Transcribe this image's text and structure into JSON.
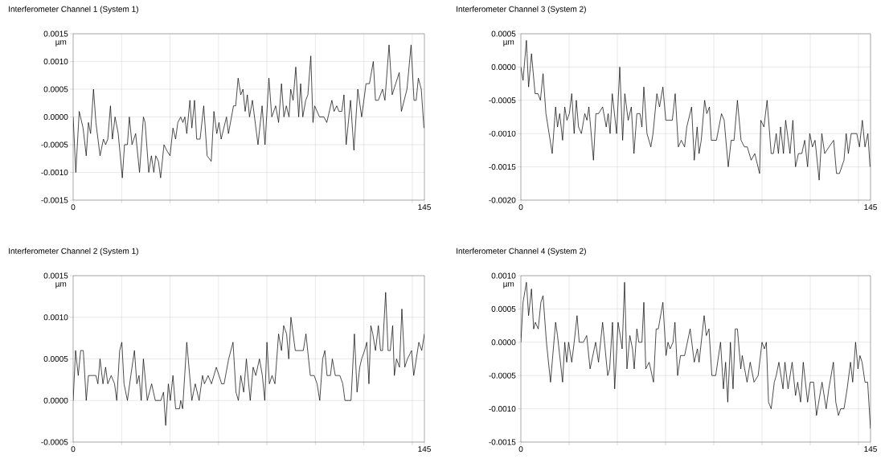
{
  "chart_data": [
    {
      "type": "line",
      "title": "Interferometer Channel 1 (System 1)",
      "ylabel": "µm",
      "color": "#000000",
      "grid": true,
      "xlim": [
        0,
        145
      ],
      "xticks": [
        0,
        {
          "value": 20,
          "label": null
        },
        {
          "value": 40,
          "label": null
        },
        {
          "value": 60,
          "label": null
        },
        {
          "value": 80,
          "label": null
        },
        {
          "value": 100,
          "label": null
        },
        {
          "value": 120,
          "label": null
        },
        {
          "value": 140,
          "label": null
        },
        145
      ],
      "ylim": [
        -0.0015,
        0.0015
      ],
      "yticks": [
        {
          "value": -0.0015,
          "label": "-0.0015"
        },
        {
          "value": -0.001,
          "label": "-0.0010"
        },
        {
          "value": -0.0005,
          "label": "-0.0005"
        },
        {
          "value": 0,
          "label": "0.0000"
        },
        {
          "value": 0.0005,
          "label": "0.0005"
        },
        {
          "value": 0.001,
          "label": "0.0010"
        },
        {
          "value": 0.0015,
          "label": "0.0015"
        }
      ],
      "x": [
        0,
        1.1,
        2.5,
        4.1,
        5.4,
        6.3,
        7.2,
        8.4,
        9.4,
        11.1,
        12.5,
        13.4,
        14.3,
        15.4,
        16.2,
        17.3,
        18.6,
        20.3,
        21.2,
        22.4,
        23.2,
        24.3,
        25.8,
        27.4,
        29,
        29.7,
        31.2,
        32.3,
        33.3,
        34.1,
        35.2,
        36.1,
        37.5,
        38.6,
        40,
        41.2,
        42.3,
        43.2,
        44.4,
        45.3,
        46.1,
        46.9,
        48.2,
        49,
        50.1,
        51,
        52.4,
        53.9,
        55.3,
        57,
        58.1,
        59.3,
        60.2,
        61.1,
        63.3,
        64.1,
        66.2,
        67.1,
        68.1,
        69.2,
        70.1,
        71,
        71.9,
        72.8,
        74,
        76.3,
        78,
        79.2,
        80.8,
        82,
        83.6,
        84.8,
        86,
        87,
        88,
        89.1,
        89.8,
        90.8,
        91.9,
        93.1,
        93.9,
        94.8,
        96,
        96.9,
        98.1,
        99,
        99.7,
        101.7,
        103.5,
        104.7,
        106.8,
        107.7,
        108.8,
        109.7,
        110.9,
        111.8,
        112.7,
        114.5,
        115.9,
        117.5,
        119.1,
        120.9,
        122.3,
        123.9,
        124.8,
        126,
        127.7,
        128.7,
        130.4,
        131.7,
        134.6,
        135.5,
        137.8,
        139.5,
        140.7,
        141.6,
        142.5,
        143.7,
        144.8
      ],
      "values": [
        0,
        -0.001,
        0.0001,
        -0.0002,
        -0.0007,
        -0.0001,
        -0.0003,
        0.0005,
        -0.0001,
        -0.0007,
        -0.0004,
        -0.0005,
        -0.0004,
        0.0002,
        -0.0004,
        0,
        -0.0003,
        -0.0011,
        -0.0005,
        -0.0005,
        0,
        -0.0005,
        -0.0003,
        -0.001,
        0,
        -0.0001,
        -0.001,
        -0.0007,
        -0.001,
        -0.0007,
        -0.0008,
        -0.0011,
        -0.0005,
        -0.0006,
        -0.0007,
        -0.0002,
        -0.0004,
        -0.0001,
        0,
        -0.0001,
        0,
        -0.0003,
        0.0003,
        -0.0002,
        0.0003,
        -0.0004,
        -0.0004,
        0.0002,
        -0.0007,
        -0.0008,
        0.0001,
        -0.0003,
        -0.0001,
        -0.0004,
        0,
        -0.0003,
        0.0002,
        0.0002,
        0.0007,
        0.0004,
        0.0005,
        0.0001,
        0.0004,
        0,
        0.0003,
        -0.0005,
        0.0002,
        -0.0005,
        0.0007,
        0,
        0.0002,
        -0.0001,
        0.0006,
        0,
        0.0002,
        0,
        0.0005,
        0.0003,
        0.0009,
        0,
        0.0006,
        0,
        0.0003,
        0.0004,
        0.0011,
        -0.0001,
        0.0002,
        0,
        0,
        -0.0001,
        0.0003,
        0.0001,
        0.0002,
        0.0001,
        0.0001,
        0.0004,
        -0.0005,
        0.0003,
        -0.0006,
        0.0005,
        0,
        0.0006,
        0.0006,
        0.001,
        0.0003,
        0.0003,
        0.0005,
        0.0003,
        0.0013,
        0.0004,
        0.0008,
        0.0001,
        0.0005,
        0.0013,
        0.0003,
        0.0003,
        0.0007,
        0.0005,
        -0.0002
      ]
    },
    {
      "type": "line",
      "title": "Interferometer Channel 3 (System 2)",
      "ylabel": "µm",
      "color": "#000000",
      "grid": true,
      "xlim": [
        0,
        145
      ],
      "xticks": [
        0,
        {
          "value": 20,
          "label": null
        },
        {
          "value": 40,
          "label": null
        },
        {
          "value": 60,
          "label": null
        },
        {
          "value": 80,
          "label": null
        },
        {
          "value": 100,
          "label": null
        },
        {
          "value": 120,
          "label": null
        },
        {
          "value": 140,
          "label": null
        },
        145
      ],
      "ylim": [
        -0.002,
        0.0005
      ],
      "yticks": [
        {
          "value": -0.002,
          "label": "-0.0020"
        },
        {
          "value": -0.0015,
          "label": "-0.0015"
        },
        {
          "value": -0.001,
          "label": "-0.0010"
        },
        {
          "value": -0.0005,
          "label": "-0.0005"
        },
        {
          "value": 0,
          "label": "0.0000"
        },
        {
          "value": 0.0005,
          "label": "0.0005"
        }
      ],
      "x": [
        0,
        0.9,
        2.3,
        3.2,
        4.4,
        5.9,
        7.1,
        8.1,
        9.2,
        10.4,
        13,
        14.4,
        15.2,
        16.1,
        17.3,
        18.2,
        19.1,
        20.1,
        21.1,
        22.1,
        23,
        23.9,
        25.1,
        26.5,
        27.4,
        28.2,
        30.1,
        31.1,
        32.2,
        33.9,
        35.4,
        36.2,
        37,
        37.9,
        39.7,
        41,
        42.2,
        43.1,
        44.5,
        45.8,
        46.9,
        48.1,
        49.4,
        50.2,
        51,
        52.3,
        53.9,
        54.8,
        56.4,
        57.5,
        58.9,
        60.1,
        61.3,
        62.8,
        64,
        65.3,
        66.5,
        67.9,
        68.8,
        70.8,
        71.9,
        73.1,
        73.9,
        74.8,
        76.2,
        77.1,
        78.2,
        79,
        81.1,
        83.2,
        84.3,
        86,
        87.2,
        88.4,
        89.8,
        91.3,
        92.7,
        93.9,
        95.5,
        97,
        99,
        99.5,
        100.8,
        102.1,
        103.8,
        104.7,
        105.9,
        106.8,
        107.7,
        108.9,
        109.8,
        111.6,
        112.8,
        113.9,
        115.1,
        116.5,
        117.7,
        118.9,
        119.8,
        120.9,
        122,
        123.7,
        124.8,
        126,
        127.8,
        129.7,
        130.9,
        132.1,
        134,
        134.9,
        135.8,
        137,
        139.3,
        140.4,
        141.6,
        142.7,
        143.9,
        144.8
      ],
      "values": [
        0,
        -0.0002,
        0.0004,
        -0.0003,
        0.0002,
        -0.0004,
        -0.0004,
        -0.0005,
        -0.0001,
        -0.0007,
        -0.0013,
        -0.0006,
        -0.0009,
        -0.0007,
        -0.0011,
        -0.0006,
        -0.0008,
        -0.0007,
        -0.0004,
        -0.001,
        -0.0005,
        -0.0009,
        -0.001,
        -0.0007,
        -0.0008,
        -0.0006,
        -0.0014,
        -0.0007,
        -0.0007,
        -0.0006,
        -0.0009,
        -0.0007,
        -0.001,
        -0.0004,
        -0.001,
        0,
        -0.0011,
        -0.0004,
        -0.0008,
        -0.0006,
        -0.0013,
        -0.0007,
        -0.0007,
        -0.0009,
        -0.0003,
        -0.001,
        -0.0012,
        -0.001,
        -0.0004,
        -0.0006,
        -0.0003,
        -0.0008,
        -0.0008,
        -0.0008,
        -0.0004,
        -0.0012,
        -0.0011,
        -0.0012,
        -0.0009,
        -0.0006,
        -0.0014,
        -0.0009,
        -0.0013,
        -0.0011,
        -0.0005,
        -0.0007,
        -0.0006,
        -0.0011,
        -0.0011,
        -0.0007,
        -0.0008,
        -0.0015,
        -0.0011,
        -0.0011,
        -0.0005,
        -0.0011,
        -0.0012,
        -0.0012,
        -0.0014,
        -0.0013,
        -0.0016,
        -0.0008,
        -0.0009,
        -0.0005,
        -0.0013,
        -0.0013,
        -0.001,
        -0.0013,
        -0.0009,
        -0.0013,
        -0.0008,
        -0.0013,
        -0.0008,
        -0.0015,
        -0.0013,
        -0.0013,
        -0.0011,
        -0.0015,
        -0.001,
        -0.0012,
        -0.0011,
        -0.0017,
        -0.001,
        -0.0013,
        -0.0012,
        -0.0011,
        -0.0016,
        -0.0016,
        -0.0014,
        -0.001,
        -0.0013,
        -0.001,
        -0.001,
        -0.0012,
        -0.0008,
        -0.0012,
        -0.001,
        -0.0015
      ]
    },
    {
      "type": "line",
      "title": "Interferometer Channel 2 (System 1)",
      "ylabel": "µm",
      "color": "#000000",
      "grid": true,
      "xlim": [
        0,
        145
      ],
      "xticks": [
        0,
        {
          "value": 20,
          "label": null
        },
        {
          "value": 40,
          "label": null
        },
        {
          "value": 60,
          "label": null
        },
        {
          "value": 80,
          "label": null
        },
        {
          "value": 100,
          "label": null
        },
        {
          "value": 120,
          "label": null
        },
        {
          "value": 140,
          "label": null
        },
        145
      ],
      "ylim": [
        -0.0005,
        0.0015
      ],
      "yticks": [
        {
          "value": -0.0005,
          "label": "-0.0005"
        },
        {
          "value": 0,
          "label": "0.0000"
        },
        {
          "value": 0.0005,
          "label": "0.0005"
        },
        {
          "value": 0.001,
          "label": "0.0010"
        },
        {
          "value": 0.0015,
          "label": "0.0015"
        }
      ],
      "x": [
        0,
        1,
        2.1,
        3.1,
        4.2,
        5.4,
        6.3,
        9.4,
        10.2,
        11.1,
        12.3,
        13.4,
        14.3,
        15.7,
        17.1,
        18,
        19.2,
        20.1,
        21,
        22.4,
        23.8,
        25.3,
        26.3,
        27.2,
        28.1,
        29,
        30.6,
        32.4,
        33.9,
        36.2,
        37.3,
        38.2,
        39.3,
        40.1,
        41.2,
        42.3,
        43.9,
        44.4,
        45.2,
        46.9,
        49,
        50.4,
        52,
        53.4,
        54.2,
        55.7,
        57.1,
        59.1,
        61.3,
        62.3,
        64.2,
        66,
        67.2,
        68.2,
        69.2,
        70.4,
        71.5,
        73.1,
        74.3,
        75.4,
        76.9,
        78.1,
        79.1,
        80,
        81,
        82.1,
        83.3,
        84.8,
        86,
        86.9,
        88.1,
        89,
        89.9,
        91.7,
        95,
        96.1,
        97.9,
        99.5,
        100.7,
        101.8,
        103,
        103.9,
        104.8,
        106.2,
        107,
        108.2,
        110.1,
        111.3,
        112.2,
        114.7,
        116.1,
        117.2,
        118.3,
        119.1,
        120.3,
        121.2,
        122.1,
        122.9,
        123.7,
        124.8,
        126,
        126.9,
        127.7,
        129,
        130,
        130.9,
        131.9,
        132.6,
        133.5,
        134.7,
        135.7,
        136.9,
        138,
        139.7,
        140.6,
        142.7,
        143.9,
        145
      ],
      "values": [
        0,
        0.0006,
        0.0003,
        0.0006,
        0.0006,
        0,
        0.0003,
        0.0003,
        0.0002,
        0.0005,
        0.0002,
        0.0004,
        0.0002,
        0.0003,
        0.0002,
        0,
        0.0006,
        0.0007,
        0.0002,
        0,
        0.0003,
        0.0006,
        0.0002,
        0.0003,
        0,
        0.0005,
        0,
        0.0002,
        0,
        0,
        0.0001,
        -0.0003,
        0.0002,
        0,
        0.0003,
        -0.0001,
        -0.0001,
        0,
        -0.0001,
        0.0007,
        0,
        0.0002,
        0,
        0.0003,
        0.0002,
        0.0003,
        0.0002,
        0.0004,
        0.0002,
        0.0002,
        0.0005,
        0.0007,
        0.0001,
        0,
        0.0003,
        0.0001,
        0.0005,
        0,
        0.0004,
        0.0003,
        0.0005,
        0.0003,
        0,
        0.0007,
        0.0002,
        0.0003,
        0.0002,
        0.0008,
        0.0006,
        0.0009,
        0.0008,
        0.0005,
        0.001,
        0.0006,
        0.0006,
        0.0008,
        0.0003,
        0.0003,
        0.0002,
        0,
        0.0005,
        0.0006,
        0.0003,
        0.0003,
        0.0005,
        0.0003,
        0.0003,
        0.0002,
        0,
        0,
        0.0008,
        0.0001,
        0.0004,
        0.0005,
        0.0006,
        0.0007,
        0.0002,
        0.0009,
        0.0008,
        0.0006,
        0.0009,
        0.0006,
        0.0006,
        0.0013,
        0.0006,
        0.0006,
        0.0009,
        0.0003,
        0.0005,
        0.0004,
        0.0011,
        0.0004,
        0.0005,
        0.0006,
        0.0003,
        0.0007,
        0.0006,
        0.0008
      ]
    },
    {
      "type": "line",
      "title": "Interferometer Channel 4 (System 2)",
      "ylabel": "µm",
      "color": "#000000",
      "grid": true,
      "xlim": [
        0,
        145
      ],
      "xticks": [
        0,
        {
          "value": 20,
          "label": null
        },
        {
          "value": 40,
          "label": null
        },
        {
          "value": 60,
          "label": null
        },
        {
          "value": 80,
          "label": null
        },
        {
          "value": 100,
          "label": null
        },
        {
          "value": 120,
          "label": null
        },
        {
          "value": 140,
          "label": null
        },
        145
      ],
      "ylim": [
        -0.0015,
        0.001
      ],
      "yticks": [
        {
          "value": -0.0015,
          "label": "-0.0015"
        },
        {
          "value": -0.001,
          "label": "-0.0010"
        },
        {
          "value": -0.0005,
          "label": "-0.0005"
        },
        {
          "value": 0,
          "label": "0.0000"
        },
        {
          "value": 0.0005,
          "label": "0.0005"
        },
        {
          "value": 0.001,
          "label": "0.0010"
        }
      ],
      "x": [
        0,
        0.9,
        2.3,
        3.2,
        4.4,
        5.3,
        6,
        7.2,
        8.3,
        9.2,
        10.6,
        12.3,
        14.4,
        15.2,
        17.3,
        18.2,
        19,
        19.8,
        21.1,
        22.1,
        23.3,
        24.2,
        25.9,
        27.3,
        28.7,
        31,
        32.2,
        33.9,
        36,
        36.8,
        38,
        38.9,
        40.3,
        41.2,
        42,
        43,
        44,
        45.2,
        46.3,
        47,
        48.1,
        48.9,
        50.2,
        51,
        51.8,
        53.2,
        55,
        56.1,
        57,
        58.9,
        60.2,
        61,
        61.9,
        63.1,
        63.9,
        65,
        66.2,
        67.9,
        70.2,
        71.9,
        73.2,
        73.9,
        76,
        76.9,
        78,
        79.2,
        80.8,
        82.8,
        84,
        84.9,
        85.8,
        86.9,
        88,
        88.9,
        89.8,
        91.2,
        91.8,
        93.8,
        95.1,
        96.7,
        98.4,
        100,
        101,
        101.8,
        102.7,
        103.8,
        105.1,
        105.9,
        107,
        108.7,
        109.5,
        110.8,
        112.5,
        113.9,
        114.8,
        116,
        117.1,
        118.9,
        120,
        121.4,
        122.6,
        124.9,
        126.6,
        127.7,
        129.6,
        130.6,
        131.7,
        132.6,
        134,
        135.3,
        136.7,
        137.6,
        138.8,
        139.8,
        140.6,
        141.5,
        142.7,
        143.8,
        145
      ],
      "values": [
        0,
        0.0006,
        0.0009,
        0.0004,
        0.0008,
        0.0002,
        0.0003,
        0.0002,
        0.0006,
        0.0007,
        0,
        -0.0006,
        0.0003,
        0.0001,
        -0.0006,
        0,
        -0.0003,
        0,
        -0.0003,
        0,
        0.0004,
        0,
        0,
        0.0001,
        -0.0004,
        0,
        -0.0003,
        0.0003,
        -0.0005,
        -0.0004,
        0.0003,
        -0.0007,
        0.0003,
        0.0001,
        -0.0001,
        0.0009,
        -0.0004,
        0.0001,
        -0.0001,
        -0.0004,
        0.0002,
        0,
        0,
        0.0006,
        -0.0004,
        -0.0003,
        -0.0006,
        0.0002,
        0.0002,
        0.0006,
        -0.0002,
        0,
        -0.0001,
        0,
        0.0003,
        -0.0005,
        -0.0002,
        -0.0002,
        0.0002,
        -0.0003,
        -0.0001,
        -0.0003,
        0.0004,
        0.0001,
        0.0002,
        -0.0005,
        -0.0005,
        0,
        -0.0007,
        -0.0003,
        -0.0009,
        0,
        -0.0007,
        0.0002,
        0.0002,
        -0.0004,
        -0.0002,
        -0.0006,
        -0.0003,
        -0.0006,
        -0.0005,
        0,
        -0.0001,
        0,
        -0.0009,
        -0.001,
        -0.0006,
        -0.0005,
        -0.0003,
        -0.0007,
        -0.0003,
        -0.0007,
        -0.0003,
        -0.0008,
        -0.0006,
        -0.0009,
        -0.0003,
        -0.0009,
        -0.0006,
        -0.0006,
        -0.0011,
        -0.0006,
        -0.001,
        -0.0007,
        -0.0003,
        -0.0009,
        -0.0011,
        -0.001,
        -0.001,
        -0.0007,
        -0.0003,
        -0.0006,
        0,
        -0.0004,
        -0.0002,
        -0.0003,
        -0.0006,
        -0.0006,
        -0.0013
      ]
    }
  ]
}
